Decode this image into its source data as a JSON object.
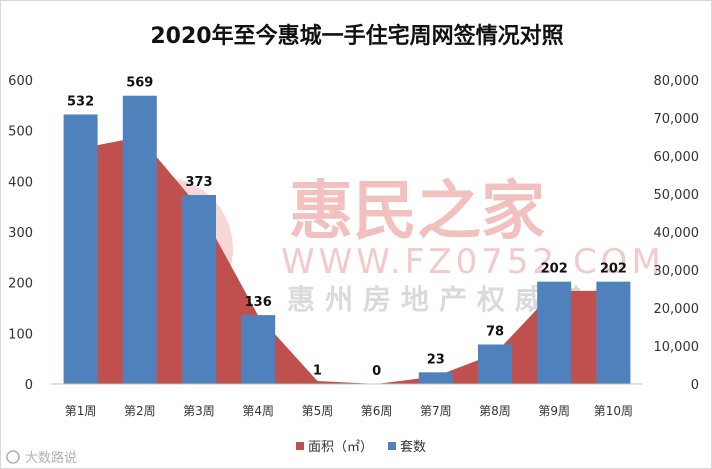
{
  "chart_data": {
    "type": "bar",
    "title": "2020年至今惠城一手住宅周网签情况对照",
    "categories": [
      "第1周",
      "第2周",
      "第3周",
      "第4周",
      "第5周",
      "第6周",
      "第7周",
      "第8周",
      "第9周",
      "第10周"
    ],
    "series": [
      {
        "name": "面积（㎡）",
        "type": "area",
        "axis": "right",
        "color": "#c0504d",
        "values": [
          62000,
          65000,
          46500,
          18000,
          800,
          0,
          2000,
          8000,
          24500,
          24500
        ]
      },
      {
        "name": "套数",
        "type": "bar",
        "axis": "left",
        "color": "#4f81bd",
        "values": [
          532,
          569,
          373,
          136,
          1,
          0,
          23,
          78,
          202,
          202
        ],
        "data_labels": [
          "532",
          "569",
          "373",
          "136",
          "1",
          "0",
          "23",
          "78",
          "202",
          "202"
        ]
      }
    ],
    "y_left": {
      "ylim": [
        0,
        600
      ],
      "ticks": [
        "0",
        "100",
        "200",
        "300",
        "400",
        "500",
        "600"
      ]
    },
    "y_right": {
      "ylim": [
        0,
        80000
      ],
      "ticks": [
        "0",
        "10,000",
        "20,000",
        "30,000",
        "40,000",
        "50,000",
        "60,000",
        "70,000",
        "80,000"
      ]
    },
    "grid": false,
    "legend": "bottom"
  },
  "watermark": {
    "brand": "惠民之家",
    "url": "WWW.FZ0752.COM",
    "tagline": "惠州房地产权威媒体"
  },
  "corner_mark": "大数路说"
}
